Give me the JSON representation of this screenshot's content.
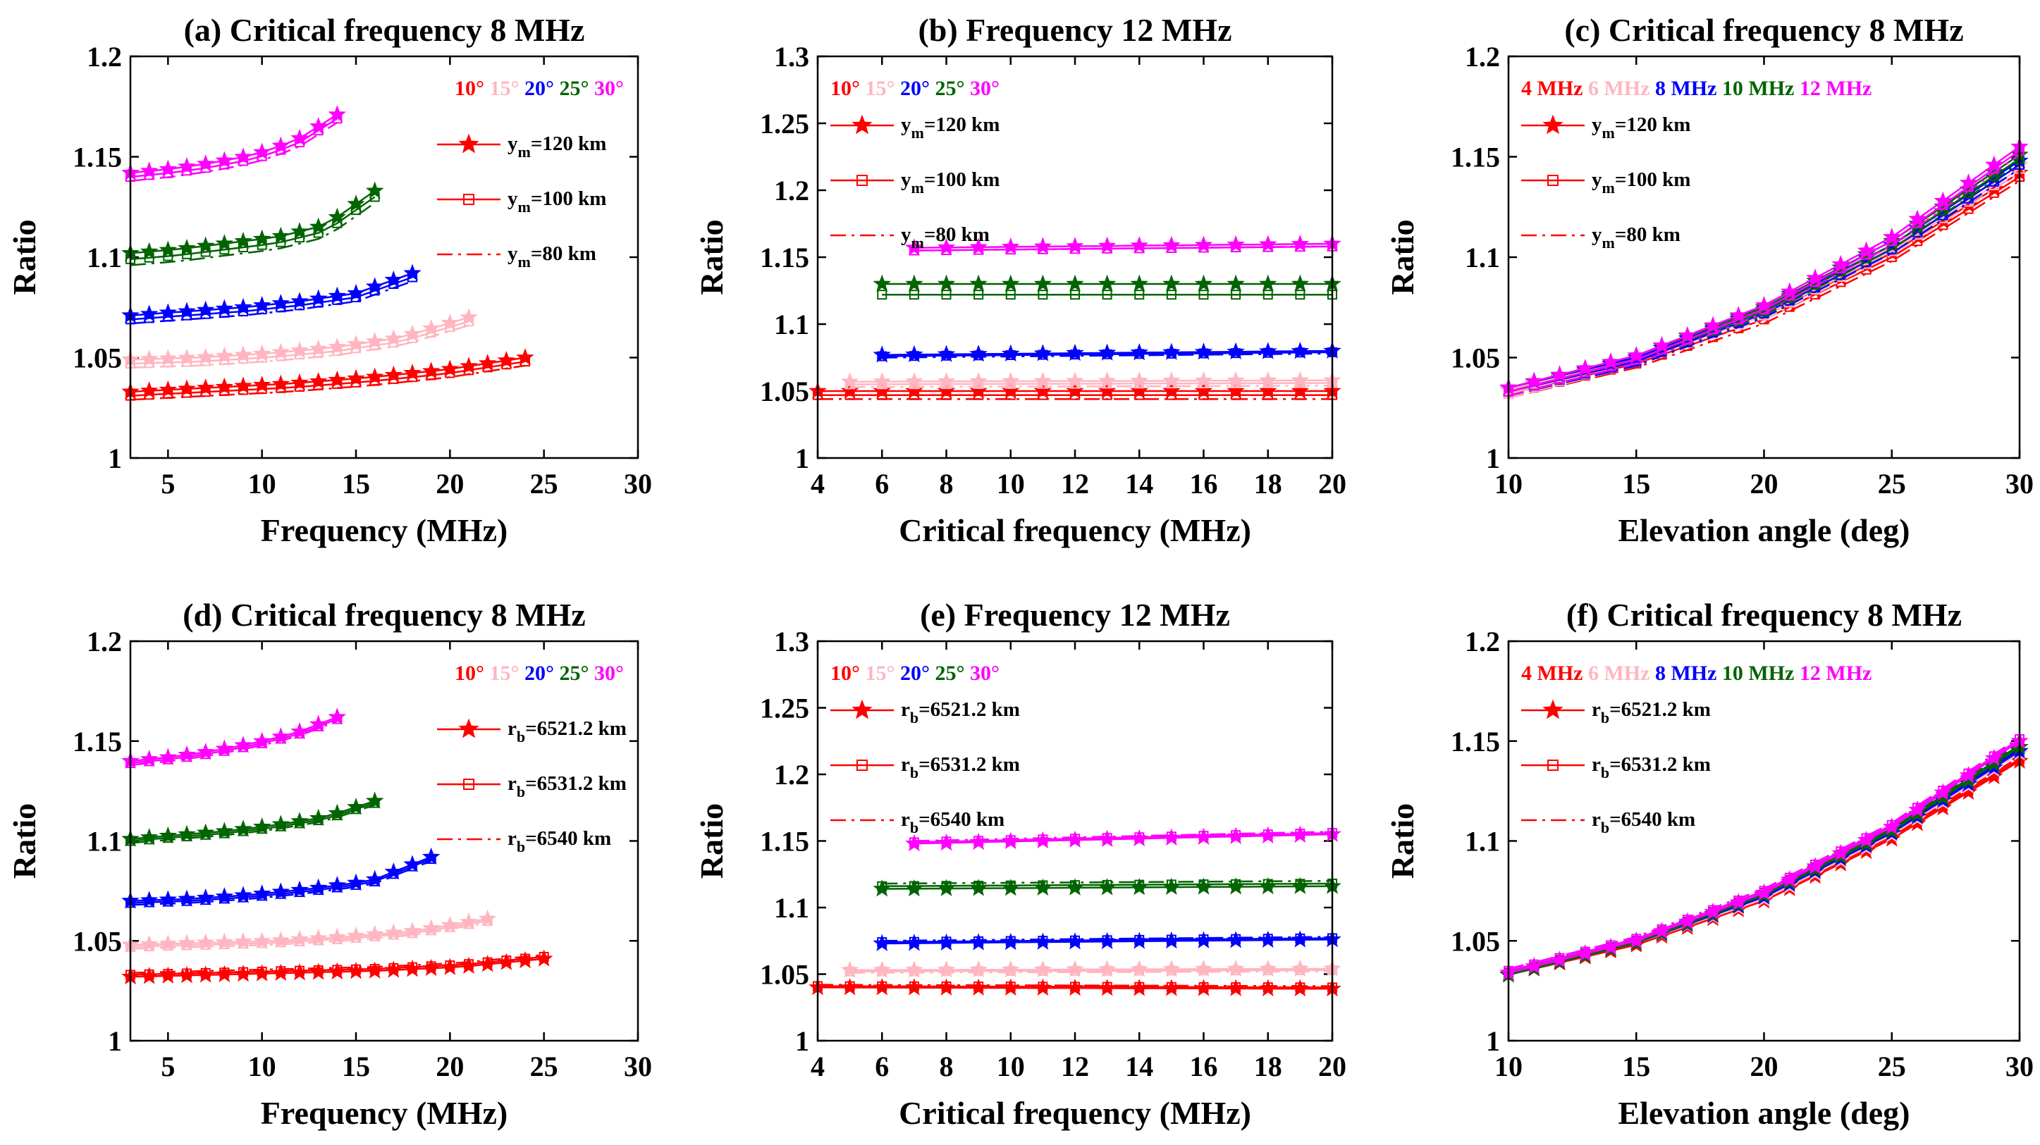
{
  "charts": [
    {
      "type": "line",
      "title": "(a) Critical frequency 8 MHz",
      "xlabel": "Frequency (MHz)",
      "ylabel": "Ratio",
      "xlim": [
        3,
        30
      ],
      "ylim": [
        1,
        1.2
      ],
      "xticks": [
        5,
        10,
        15,
        20,
        25,
        30
      ],
      "yticks": [
        1,
        1.05,
        1.1,
        1.15,
        1.2
      ],
      "color_legend": [
        {
          "label": "10°",
          "color": "#ff0000"
        },
        {
          "label": "15°",
          "color": "#ffb6c1"
        },
        {
          "label": "20°",
          "color": "#0000ff"
        },
        {
          "label": "25°",
          "color": "#006400"
        },
        {
          "label": "30°",
          "color": "#ff00ff"
        }
      ],
      "style_legend": [
        {
          "base": "y",
          "sub": "m",
          "rest": "=120 km",
          "marker": "star",
          "line": "solid"
        },
        {
          "base": "y",
          "sub": "m",
          "rest": "=100 km",
          "marker": "square",
          "line": "solid"
        },
        {
          "base": "y",
          "sub": "m",
          "rest": "=80 km",
          "marker": "none",
          "line": "dashdot"
        }
      ],
      "legend_position": "top-right",
      "series": [
        {
          "color": "#ff0000",
          "xstart": 3,
          "xend": 24,
          "values": [
            1.033,
            1.035,
            1.037,
            1.04,
            1.044,
            1.05
          ],
          "offsets": [
            0,
            -0.002,
            -0.004
          ]
        },
        {
          "color": "#ffb6c1",
          "xstart": 3,
          "xend": 21,
          "values": [
            1.049,
            1.05,
            1.052,
            1.055,
            1.06,
            1.07
          ],
          "offsets": [
            0,
            -0.002,
            -0.004
          ]
        },
        {
          "color": "#0000ff",
          "xstart": 3,
          "xend": 18,
          "values": [
            1.071,
            1.073,
            1.075,
            1.078,
            1.082,
            1.092
          ],
          "offsets": [
            0,
            -0.002,
            -0.004
          ]
        },
        {
          "color": "#006400",
          "xstart": 3,
          "xend": 16,
          "values": [
            1.102,
            1.104,
            1.107,
            1.11,
            1.116,
            1.133
          ],
          "offsets": [
            0,
            -0.003,
            -0.006
          ]
        },
        {
          "color": "#ff00ff",
          "xstart": 3,
          "xend": 14,
          "values": [
            1.142,
            1.144,
            1.147,
            1.151,
            1.158,
            1.171
          ],
          "offsets": [
            0,
            -0.002,
            -0.004
          ]
        }
      ]
    },
    {
      "type": "line",
      "title": "(b) Frequency 12 MHz",
      "xlabel": "Critical frequency (MHz)",
      "ylabel": "Ratio",
      "xlim": [
        4,
        20
      ],
      "ylim": [
        1,
        1.3
      ],
      "xticks": [
        4,
        6,
        8,
        10,
        12,
        14,
        16,
        18,
        20
      ],
      "yticks": [
        1,
        1.05,
        1.1,
        1.15,
        1.2,
        1.25,
        1.3
      ],
      "color_legend": [
        {
          "label": "10°",
          "color": "#ff0000"
        },
        {
          "label": "15°",
          "color": "#ffb6c1"
        },
        {
          "label": "20°",
          "color": "#0000ff"
        },
        {
          "label": "25°",
          "color": "#006400"
        },
        {
          "label": "30°",
          "color": "#ff00ff"
        }
      ],
      "style_legend": [
        {
          "base": "y",
          "sub": "m",
          "rest": "=120 km",
          "marker": "star",
          "line": "solid"
        },
        {
          "base": "y",
          "sub": "m",
          "rest": "=100 km",
          "marker": "square",
          "line": "solid"
        },
        {
          "base": "y",
          "sub": "m",
          "rest": "=80 km",
          "marker": "none",
          "line": "dashdot"
        }
      ],
      "legend_position": "top-left",
      "series": [
        {
          "color": "#ff0000",
          "xstart": 4,
          "xend": 20,
          "values": [
            1.05,
            1.05
          ],
          "offsets": [
            0,
            -0.003,
            -0.006
          ]
        },
        {
          "color": "#ffb6c1",
          "xstart": 5,
          "xend": 20,
          "values": [
            1.057,
            1.058
          ],
          "offsets": [
            0,
            -0.002,
            -0.004
          ]
        },
        {
          "color": "#0000ff",
          "xstart": 6,
          "xend": 20,
          "values": [
            1.077,
            1.08
          ],
          "offsets": [
            0,
            -0.001,
            -0.002
          ]
        },
        {
          "color": "#006400",
          "xstart": 6,
          "xend": 20,
          "values": [
            1.13,
            1.13
          ],
          "offsets": [
            0,
            -0.008,
            -0.008
          ]
        },
        {
          "color": "#ff00ff",
          "xstart": 7,
          "xend": 20,
          "values": [
            1.157,
            1.16
          ],
          "offsets": [
            0,
            -0.002,
            -0.002
          ]
        }
      ]
    },
    {
      "type": "line",
      "title": "(c) Critical frequency 8 MHz",
      "xlabel": "Elevation angle (deg)",
      "ylabel": "Ratio",
      "xlim": [
        10,
        30
      ],
      "ylim": [
        1,
        1.2
      ],
      "xticks": [
        10,
        15,
        20,
        25,
        30
      ],
      "yticks": [
        1,
        1.05,
        1.1,
        1.15,
        1.2
      ],
      "color_legend": [
        {
          "label": "4 MHz",
          "color": "#ff0000"
        },
        {
          "label": "6 MHz",
          "color": "#ffb6c1"
        },
        {
          "label": "8 MHz",
          "color": "#0000ff"
        },
        {
          "label": "10 MHz",
          "color": "#006400"
        },
        {
          "label": "12 MHz",
          "color": "#ff00ff"
        }
      ],
      "style_legend": [
        {
          "base": "y",
          "sub": "m",
          "rest": "=120 km",
          "marker": "star",
          "line": "solid"
        },
        {
          "base": "y",
          "sub": "m",
          "rest": "=100 km",
          "marker": "square",
          "line": "solid"
        },
        {
          "base": "y",
          "sub": "m",
          "rest": "=80 km",
          "marker": "none",
          "line": "dashdot"
        }
      ],
      "legend_position": "top-left",
      "series": [
        {
          "color": "#ff0000",
          "xstart": 10,
          "xend": 30,
          "values": [
            1.034,
            1.049,
            1.071,
            1.102,
            1.142
          ],
          "offsets": [
            0,
            -0.002,
            -0.004
          ]
        },
        {
          "color": "#ffb6c1",
          "xstart": 10,
          "xend": 30,
          "values": [
            1.034,
            1.05,
            1.073,
            1.105,
            1.146
          ],
          "offsets": [
            0,
            -0.002,
            -0.004
          ]
        },
        {
          "color": "#0000ff",
          "xstart": 10,
          "xend": 30,
          "values": [
            1.035,
            1.05,
            1.074,
            1.106,
            1.148
          ],
          "offsets": [
            0,
            -0.002,
            -0.004
          ]
        },
        {
          "color": "#006400",
          "xstart": 10,
          "xend": 30,
          "values": [
            1.035,
            1.051,
            1.075,
            1.108,
            1.151
          ],
          "offsets": [
            0,
            -0.002,
            -0.004
          ]
        },
        {
          "color": "#ff00ff",
          "xstart": 10,
          "xend": 30,
          "values": [
            1.035,
            1.051,
            1.076,
            1.11,
            1.155
          ],
          "offsets": [
            0,
            -0.002,
            -0.004
          ]
        }
      ]
    },
    {
      "type": "line",
      "title": "(d) Critical frequency 8 MHz",
      "xlabel": "Frequency (MHz)",
      "ylabel": "Ratio",
      "xlim": [
        3,
        30
      ],
      "ylim": [
        1,
        1.2
      ],
      "xticks": [
        5,
        10,
        15,
        20,
        25,
        30
      ],
      "yticks": [
        1,
        1.05,
        1.1,
        1.15,
        1.2
      ],
      "color_legend": [
        {
          "label": "10°",
          "color": "#ff0000"
        },
        {
          "label": "15°",
          "color": "#ffb6c1"
        },
        {
          "label": "20°",
          "color": "#0000ff"
        },
        {
          "label": "25°",
          "color": "#006400"
        },
        {
          "label": "30°",
          "color": "#ff00ff"
        }
      ],
      "style_legend": [
        {
          "base": "r",
          "sub": "b",
          "rest": "=6521.2 km",
          "marker": "star",
          "line": "solid"
        },
        {
          "base": "r",
          "sub": "b",
          "rest": "=6531.2 km",
          "marker": "square",
          "line": "solid"
        },
        {
          "base": "r",
          "sub": "b",
          "rest": "=6540 km",
          "marker": "none",
          "line": "dashdot"
        }
      ],
      "legend_position": "top-right",
      "series": [
        {
          "color": "#ff0000",
          "xstart": 3,
          "xend": 25,
          "values": [
            1.032,
            1.033,
            1.034,
            1.035,
            1.037,
            1.041
          ],
          "offsets": [
            0,
            0.001,
            0.002
          ]
        },
        {
          "color": "#ffb6c1",
          "xstart": 3,
          "xend": 22,
          "values": [
            1.048,
            1.049,
            1.05,
            1.052,
            1.055,
            1.061
          ],
          "offsets": [
            0,
            -0.001,
            -0.002
          ]
        },
        {
          "color": "#0000ff",
          "xstart": 3,
          "xend": 19,
          "values": [
            1.07,
            1.071,
            1.073,
            1.076,
            1.08,
            1.092
          ],
          "offsets": [
            0,
            -0.001,
            -0.002
          ]
        },
        {
          "color": "#006400",
          "xstart": 3,
          "xend": 16,
          "values": [
            1.101,
            1.103,
            1.105,
            1.108,
            1.112,
            1.12
          ],
          "offsets": [
            0,
            -0.001,
            -0.002
          ]
        },
        {
          "color": "#ff00ff",
          "xstart": 3,
          "xend": 14,
          "values": [
            1.14,
            1.142,
            1.145,
            1.149,
            1.154,
            1.162
          ],
          "offsets": [
            0,
            -0.001,
            -0.002
          ]
        }
      ]
    },
    {
      "type": "line",
      "title": "(e) Frequency 12 MHz",
      "xlabel": "Critical frequency (MHz)",
      "ylabel": "Ratio",
      "xlim": [
        4,
        20
      ],
      "ylim": [
        1,
        1.3
      ],
      "xticks": [
        4,
        6,
        8,
        10,
        12,
        14,
        16,
        18,
        20
      ],
      "yticks": [
        1,
        1.05,
        1.1,
        1.15,
        1.2,
        1.25,
        1.3
      ],
      "color_legend": [
        {
          "label": "10°",
          "color": "#ff0000"
        },
        {
          "label": "15°",
          "color": "#ffb6c1"
        },
        {
          "label": "20°",
          "color": "#0000ff"
        },
        {
          "label": "25°",
          "color": "#006400"
        },
        {
          "label": "30°",
          "color": "#ff00ff"
        }
      ],
      "style_legend": [
        {
          "base": "r",
          "sub": "b",
          "rest": "=6521.2 km",
          "marker": "star",
          "line": "solid"
        },
        {
          "base": "r",
          "sub": "b",
          "rest": "=6531.2 km",
          "marker": "square",
          "line": "solid"
        },
        {
          "base": "r",
          "sub": "b",
          "rest": "=6540 km",
          "marker": "none",
          "line": "dashdot"
        }
      ],
      "legend_position": "top-left",
      "series": [
        {
          "color": "#ff0000",
          "xstart": 4,
          "xend": 20,
          "values": [
            1.04,
            1.039
          ],
          "offsets": [
            0,
            0.001,
            0.002
          ]
        },
        {
          "color": "#ffb6c1",
          "xstart": 5,
          "xend": 20,
          "values": [
            1.053,
            1.054
          ],
          "offsets": [
            0,
            -0.001,
            -0.002
          ]
        },
        {
          "color": "#0000ff",
          "xstart": 6,
          "xend": 20,
          "values": [
            1.073,
            1.076
          ],
          "offsets": [
            0,
            0.001,
            0.002
          ]
        },
        {
          "color": "#006400",
          "xstart": 6,
          "xend": 20,
          "values": [
            1.114,
            1.116
          ],
          "offsets": [
            0,
            0.002,
            0.004
          ]
        },
        {
          "color": "#ff00ff",
          "xstart": 7,
          "xend": 20,
          "values": [
            1.148,
            1.155
          ],
          "offsets": [
            0,
            0.001,
            0.002
          ]
        }
      ]
    },
    {
      "type": "line",
      "title": "(f) Critical frequency 8 MHz",
      "xlabel": "Elevation angle (deg)",
      "ylabel": "Ratio",
      "xlim": [
        10,
        30
      ],
      "ylim": [
        1,
        1.2
      ],
      "xticks": [
        10,
        15,
        20,
        25,
        30
      ],
      "yticks": [
        1,
        1.05,
        1.1,
        1.15,
        1.2
      ],
      "color_legend": [
        {
          "label": "4 MHz",
          "color": "#ff0000"
        },
        {
          "label": "6 MHz",
          "color": "#ffb6c1"
        },
        {
          "label": "8 MHz",
          "color": "#0000ff"
        },
        {
          "label": "10 MHz",
          "color": "#006400"
        },
        {
          "label": "12 MHz",
          "color": "#ff00ff"
        }
      ],
      "style_legend": [
        {
          "base": "r",
          "sub": "b",
          "rest": "=6521.2 km",
          "marker": "star",
          "line": "solid"
        },
        {
          "base": "r",
          "sub": "b",
          "rest": "=6531.2 km",
          "marker": "square",
          "line": "solid"
        },
        {
          "base": "r",
          "sub": "b",
          "rest": "=6540 km",
          "marker": "none",
          "line": "dashdot"
        }
      ],
      "legend_position": "top-left",
      "series": [
        {
          "color": "#ff0000",
          "xstart": 10,
          "xend": 30,
          "values": [
            1.033,
            1.048,
            1.07,
            1.101,
            1.14
          ],
          "offsets": [
            0,
            0.001,
            0.002
          ]
        },
        {
          "color": "#ffb6c1",
          "xstart": 10,
          "xend": 30,
          "values": [
            1.033,
            1.049,
            1.071,
            1.103,
            1.144
          ],
          "offsets": [
            0,
            0.001,
            0.002
          ]
        },
        {
          "color": "#0000ff",
          "xstart": 10,
          "xend": 30,
          "values": [
            1.033,
            1.049,
            1.072,
            1.104,
            1.145
          ],
          "offsets": [
            0,
            0.001,
            0.002
          ]
        },
        {
          "color": "#006400",
          "xstart": 10,
          "xend": 30,
          "values": [
            1.033,
            1.049,
            1.073,
            1.105,
            1.147
          ],
          "offsets": [
            0,
            0.001,
            0.002
          ]
        },
        {
          "color": "#ff00ff",
          "xstart": 10,
          "xend": 30,
          "values": [
            1.034,
            1.05,
            1.074,
            1.107,
            1.15
          ],
          "offsets": [
            0,
            0.001,
            0.002
          ]
        }
      ]
    }
  ]
}
